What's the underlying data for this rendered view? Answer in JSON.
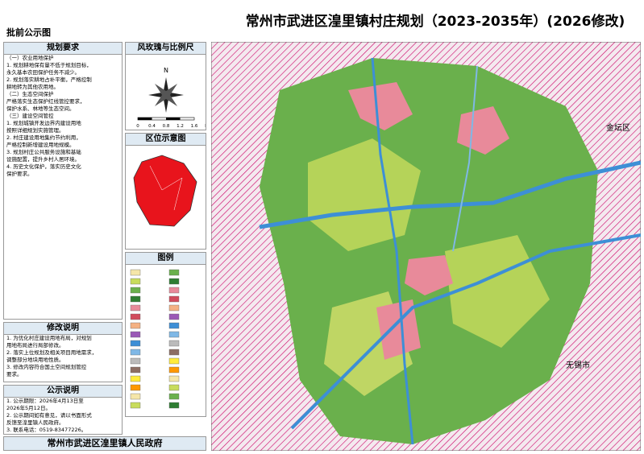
{
  "header": {
    "title": "常州市武进区湟里镇村庄规划（2023-2035年）(2026修改)",
    "stamp": "批前公示图"
  },
  "sidebar": {
    "requirements": {
      "heading": "规划要求",
      "lines": [
        "（一）农业用地保护",
        "1. 规划耕地保有量不低于规划目标，",
        "永久基本农田保护任务不减少。",
        "2. 规划落实耕地占补平衡，严格控制",
        "耕地转为其他农用地。",
        "（二）生态空间保护",
        "严格落实生态保护红线管控要求，",
        "保护水系、林地等生态空间。",
        "（三）建设空间管控",
        "1. 规划城镇开发边界内建设用地",
        "按照详细规划实施管理。",
        "2. 村庄建设用地集约节约利用，",
        "严格控制新增建设用地规模。",
        "3. 规划村庄公共服务设施和基础",
        "设施配置，提升乡村人居环境。",
        "4. 历史文化保护，落实历史文化",
        "保护要求。"
      ]
    },
    "compass": {
      "heading": "风玫瑰与比例尺",
      "north": "N",
      "scale": [
        "0",
        "0.4",
        "0.8",
        "1.2",
        "1.6",
        "km"
      ]
    },
    "location": {
      "heading": "区位示意图"
    },
    "legend": {
      "heading": "图例"
    },
    "revision": {
      "heading": "修改说明",
      "lines": [
        "1. 为优化村庄建设用地布局，对规划",
        "用地布局进行局部修改。",
        "2. 落实上位规划及相关项目用地需求，",
        "调整部分地块用地性质。",
        "3. 修改内容符合国土空间规划管控",
        "要求。"
      ]
    },
    "notice": {
      "heading": "公示说明",
      "lines": [
        "1. 公示期限：2026年4月13日至",
        "2026年5月12日。",
        "2. 公示期间如有意见，请以书面形式",
        "反馈至湟里镇人民政府。",
        "3. 联系电话：0519-83477226。"
      ]
    },
    "footer": "常州市武进区湟里镇人民政府"
  },
  "map": {
    "labels": [
      "金坛区",
      "无锡市"
    ]
  }
}
